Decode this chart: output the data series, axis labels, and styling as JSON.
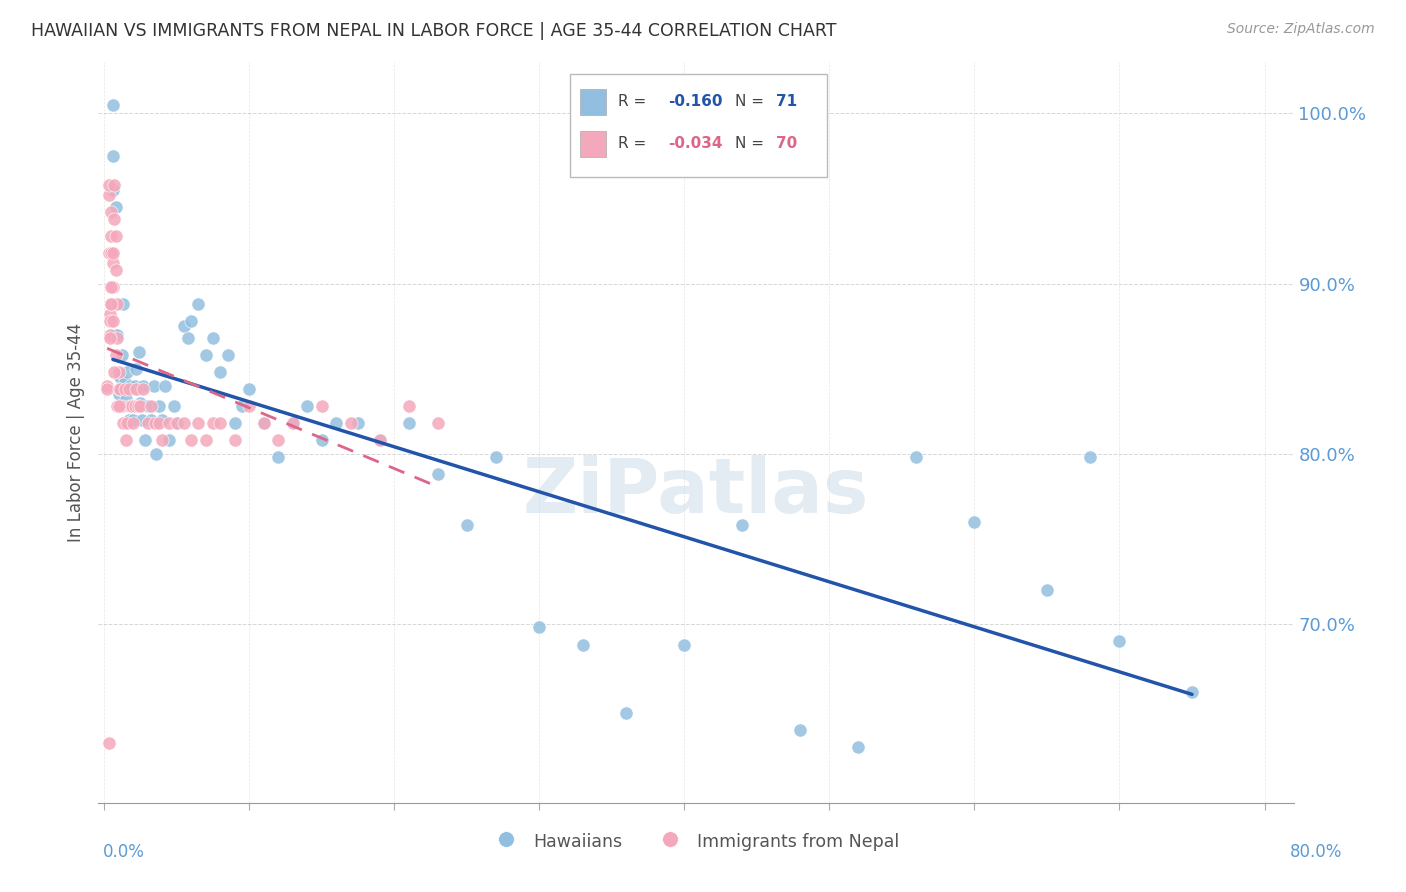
{
  "title": "HAWAIIAN VS IMMIGRANTS FROM NEPAL IN LABOR FORCE | AGE 35-44 CORRELATION CHART",
  "source": "Source: ZipAtlas.com",
  "ylabel": "In Labor Force | Age 35-44",
  "xmin": -0.004,
  "xmax": 0.82,
  "ymin": 0.595,
  "ymax": 1.03,
  "legend_blue_r": "-0.160",
  "legend_blue_n": "71",
  "legend_pink_r": "-0.034",
  "legend_pink_n": "70",
  "blue_color": "#92bfdf",
  "pink_color": "#f4a8bb",
  "blue_line_color": "#2255aa",
  "pink_line_color": "#dd6688",
  "grid_color": "#cccccc",
  "title_color": "#333333",
  "axis_label_color": "#5b9bd5",
  "watermark": "ZiPatlas",
  "hawaiians_x": [
    0.006,
    0.006,
    0.006,
    0.007,
    0.008,
    0.009,
    0.01,
    0.011,
    0.012,
    0.013,
    0.014,
    0.015,
    0.016,
    0.017,
    0.018,
    0.019,
    0.02,
    0.021,
    0.022,
    0.023,
    0.024,
    0.025,
    0.026,
    0.027,
    0.028,
    0.03,
    0.032,
    0.034,
    0.036,
    0.038,
    0.04,
    0.042,
    0.045,
    0.048,
    0.05,
    0.055,
    0.058,
    0.06,
    0.065,
    0.07,
    0.075,
    0.08,
    0.085,
    0.09,
    0.095,
    0.1,
    0.11,
    0.12,
    0.13,
    0.14,
    0.15,
    0.16,
    0.175,
    0.19,
    0.21,
    0.23,
    0.25,
    0.27,
    0.3,
    0.33,
    0.36,
    0.4,
    0.44,
    0.48,
    0.52,
    0.56,
    0.6,
    0.65,
    0.7,
    0.75,
    0.68
  ],
  "hawaiians_y": [
    1.005,
    0.975,
    0.955,
    0.87,
    0.945,
    0.87,
    0.835,
    0.845,
    0.858,
    0.888,
    0.842,
    0.832,
    0.848,
    0.82,
    0.84,
    0.828,
    0.82,
    0.84,
    0.85,
    0.838,
    0.86,
    0.83,
    0.82,
    0.84,
    0.808,
    0.828,
    0.82,
    0.84,
    0.8,
    0.828,
    0.82,
    0.84,
    0.808,
    0.828,
    0.818,
    0.875,
    0.868,
    0.878,
    0.888,
    0.858,
    0.868,
    0.848,
    0.858,
    0.818,
    0.828,
    0.838,
    0.818,
    0.798,
    0.818,
    0.828,
    0.808,
    0.818,
    0.818,
    0.808,
    0.818,
    0.788,
    0.758,
    0.798,
    0.698,
    0.688,
    0.648,
    0.688,
    0.758,
    0.638,
    0.628,
    0.798,
    0.76,
    0.72,
    0.69,
    0.66,
    0.798
  ],
  "nepal_x": [
    0.002,
    0.002,
    0.003,
    0.003,
    0.003,
    0.004,
    0.004,
    0.005,
    0.005,
    0.005,
    0.005,
    0.006,
    0.006,
    0.006,
    0.007,
    0.007,
    0.008,
    0.008,
    0.009,
    0.009,
    0.01,
    0.01,
    0.011,
    0.012,
    0.013,
    0.014,
    0.015,
    0.016,
    0.017,
    0.018,
    0.019,
    0.02,
    0.021,
    0.022,
    0.023,
    0.025,
    0.027,
    0.03,
    0.032,
    0.035,
    0.038,
    0.04,
    0.045,
    0.05,
    0.055,
    0.06,
    0.065,
    0.07,
    0.075,
    0.08,
    0.09,
    0.1,
    0.11,
    0.12,
    0.13,
    0.15,
    0.17,
    0.19,
    0.21,
    0.23,
    0.004,
    0.004,
    0.005,
    0.005,
    0.006,
    0.007,
    0.008,
    0.009,
    0.01,
    0.003
  ],
  "nepal_y": [
    0.84,
    0.838,
    0.952,
    0.958,
    0.918,
    0.87,
    0.882,
    0.942,
    0.928,
    0.918,
    0.888,
    0.912,
    0.918,
    0.898,
    0.938,
    0.958,
    0.928,
    0.908,
    0.888,
    0.868,
    0.838,
    0.848,
    0.838,
    0.828,
    0.818,
    0.838,
    0.808,
    0.818,
    0.838,
    0.828,
    0.828,
    0.818,
    0.828,
    0.838,
    0.828,
    0.828,
    0.838,
    0.818,
    0.828,
    0.818,
    0.818,
    0.808,
    0.818,
    0.818,
    0.818,
    0.808,
    0.818,
    0.808,
    0.818,
    0.818,
    0.808,
    0.828,
    0.818,
    0.808,
    0.818,
    0.828,
    0.818,
    0.808,
    0.828,
    0.818,
    0.868,
    0.878,
    0.888,
    0.898,
    0.878,
    0.848,
    0.858,
    0.828,
    0.828,
    0.63
  ]
}
